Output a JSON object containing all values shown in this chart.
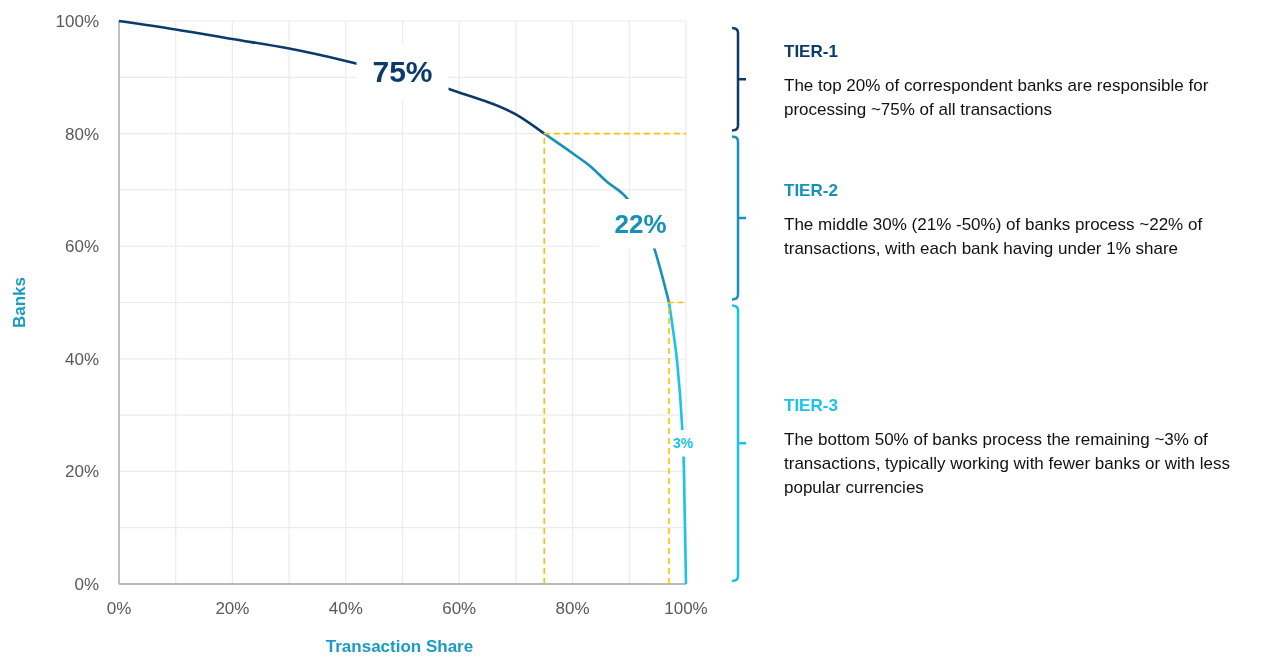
{
  "chart_data": {
    "type": "line",
    "xlabel": "Transaction Share",
    "ylabel": "Banks",
    "xlim": [
      0,
      100
    ],
    "ylim": [
      0,
      100
    ],
    "xticks": [
      {
        "value": 0,
        "label": "0%"
      },
      {
        "value": 10,
        "label": null
      },
      {
        "value": 20,
        "label": "20%"
      },
      {
        "value": 30,
        "label": null
      },
      {
        "value": 40,
        "label": "40%"
      },
      {
        "value": 50,
        "label": null
      },
      {
        "value": 60,
        "label": "60%"
      },
      {
        "value": 70,
        "label": null
      },
      {
        "value": 80,
        "label": "80%"
      },
      {
        "value": 90,
        "label": null
      },
      {
        "value": 100,
        "label": "100%"
      }
    ],
    "yticks": [
      {
        "value": 0,
        "label": "0%"
      },
      {
        "value": 10,
        "label": null
      },
      {
        "value": 20,
        "label": "20%"
      },
      {
        "value": 30,
        "label": null
      },
      {
        "value": 40,
        "label": "40%"
      },
      {
        "value": 50,
        "label": null
      },
      {
        "value": 60,
        "label": "60%"
      },
      {
        "value": 70,
        "label": null
      },
      {
        "value": 80,
        "label": "80%"
      },
      {
        "value": 90,
        "label": null
      },
      {
        "value": 100,
        "label": "100%"
      }
    ],
    "grid": true,
    "marker": "none",
    "series": [
      {
        "color": "#0b3a6b",
        "x": [
          0,
          10,
          20,
          30,
          40,
          60,
          70,
          75
        ],
        "values": [
          100,
          98.5,
          96.8,
          95.1,
          92.9,
          87.3,
          83.4,
          80
        ]
      },
      {
        "color": "#1592b8",
        "x": [
          75,
          80,
          83,
          86,
          89.6,
          94.4,
          97
        ],
        "values": [
          80,
          76.5,
          74.3,
          71.5,
          68.5,
          59.6,
          50
        ]
      },
      {
        "color": "#19c3ea",
        "x": [
          97,
          97.8,
          98.4,
          99.3,
          99.6,
          100
        ],
        "values": [
          50,
          44.5,
          39.8,
          28.2,
          21.7,
          0
        ]
      },
      {
        "color": "#ffc000",
        "line_style": "dashed",
        "x": [
          75,
          75,
          100
        ],
        "values": [
          0,
          80,
          80
        ]
      },
      {
        "color": "#ffc000",
        "line_style": "dashed",
        "x": [
          97,
          97,
          100
        ],
        "values": [
          0,
          50,
          50
        ]
      }
    ],
    "annotations": [
      {
        "text": "75%",
        "x": 50,
        "y": 91
      },
      {
        "text": "22%",
        "x": 92,
        "y": 64
      },
      {
        "text": "3%",
        "x": 99.5,
        "y": 25
      },
      "TIER-1",
      "The top 20% of correspondent banks are responsible for processing ~75% of all transactions",
      "TIER-2",
      "The middle 30% (21% -50%) of banks process ~22% of transactions, with each bank having under 1% share",
      "TIER-3",
      "The bottom 50% of banks process the remaining ~3% of transactions, typically working with fewer banks or with less popular currencies"
    ]
  }
}
